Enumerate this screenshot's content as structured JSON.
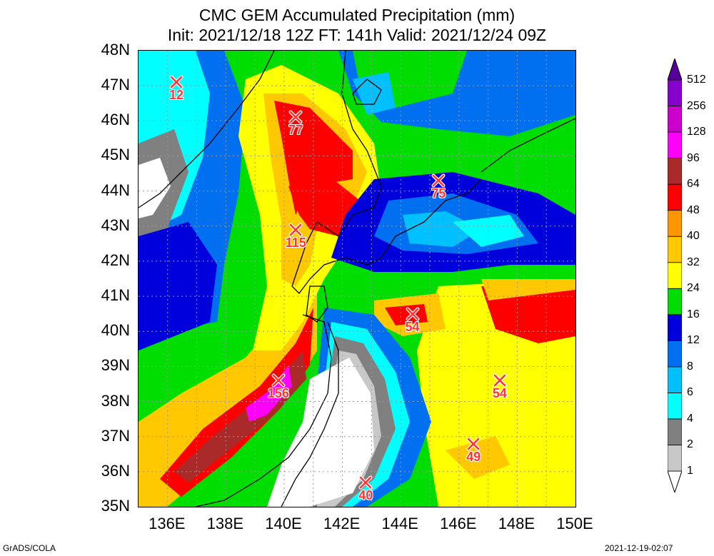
{
  "title_line1": "CMC GEM Accumulated Precipitation (mm)",
  "title_line2": "Init: 2021/12/18 12Z  FT: 141h  Valid: 2021/12/24 09Z",
  "lat_ticks": [
    "48N",
    "47N",
    "46N",
    "45N",
    "44N",
    "43N",
    "42N",
    "41N",
    "40N",
    "39N",
    "38N",
    "37N",
    "36N",
    "35N"
  ],
  "lon_ticks": [
    "136E",
    "138E",
    "140E",
    "142E",
    "144E",
    "146E",
    "148E",
    "150E"
  ],
  "markers": [
    {
      "label": "12",
      "lon": 136.3,
      "lat": 47.1
    },
    {
      "label": "77",
      "lon": 140.4,
      "lat": 46.1
    },
    {
      "label": "75",
      "lon": 145.3,
      "lat": 44.3
    },
    {
      "label": "115",
      "lon": 140.4,
      "lat": 42.9
    },
    {
      "label": "54",
      "lon": 144.4,
      "lat": 40.5
    },
    {
      "label": "54",
      "lon": 147.4,
      "lat": 38.6
    },
    {
      "label": "156",
      "lon": 139.8,
      "lat": 38.6
    },
    {
      "label": "49",
      "lon": 146.5,
      "lat": 36.8
    },
    {
      "label": "40",
      "lon": 142.8,
      "lat": 35.7
    }
  ],
  "legend": {
    "levels": [
      "1",
      "2",
      "4",
      "6",
      "8",
      "12",
      "16",
      "24",
      "32",
      "40",
      "48",
      "64",
      "96",
      "128",
      "256",
      "512"
    ],
    "colors": [
      "#ffffff",
      "#c8c8c8",
      "#808080",
      "#00ffff",
      "#00c0ff",
      "#0070f0",
      "#0000dd",
      "#00dd00",
      "#ffff00",
      "#ffc800",
      "#ff9600",
      "#ff0000",
      "#aa2a2a",
      "#ff00ff",
      "#cc00cc",
      "#8800cc",
      "#550099"
    ]
  },
  "footer_left": "GrADS/COLA",
  "footer_right": "2021-12-19-02:07"
}
